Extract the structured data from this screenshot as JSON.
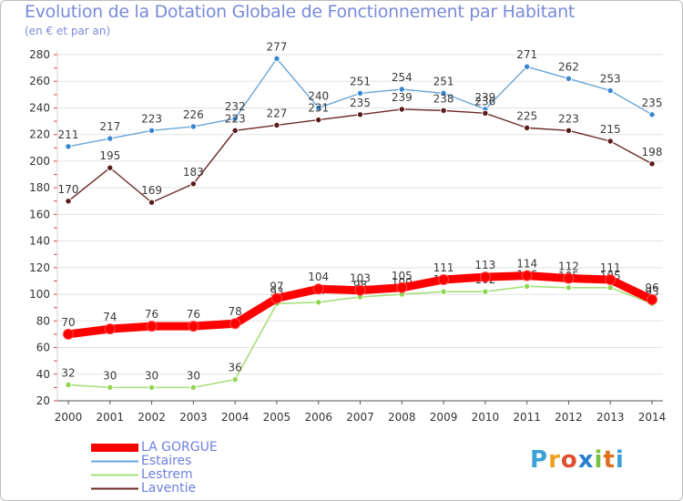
{
  "colors": {
    "la_gorgue": "#ff0000",
    "estaires": "#6aa6d8",
    "lestrem": "#a6e07a",
    "laventie": "#6b2a2a",
    "estaires_marker": "#3a86cf",
    "lestrem_marker": "#8fd650",
    "laventie_marker": "#5a1a1a",
    "text_blue": "#6d7fe0",
    "grid": "#e3e3e3"
  },
  "chart_data": {
    "type": "line",
    "title": "Evolution de la Dotation Globale de Fonctionnement par Habitant",
    "subtitle": "(en € et par an)",
    "xlabel": "",
    "ylabel": "",
    "ylim": [
      20,
      280
    ],
    "yticks": [
      20,
      40,
      60,
      80,
      100,
      120,
      140,
      160,
      180,
      200,
      220,
      240,
      260,
      280
    ],
    "grid": true,
    "legend_position": "bottom-left",
    "x": [
      2000,
      2001,
      2002,
      2003,
      2004,
      2005,
      2006,
      2007,
      2008,
      2009,
      2010,
      2011,
      2012,
      2013,
      2014
    ],
    "series": [
      {
        "key": "estaires",
        "name": "Estaires",
        "values": [
          211,
          217,
          223,
          226,
          232,
          277,
          240,
          251,
          254,
          251,
          239,
          271,
          262,
          253,
          235
        ],
        "labels": [
          "211",
          "217",
          "223",
          "226",
          "232",
          "277",
          "240",
          "251",
          "254",
          "251",
          "239",
          "271",
          "262",
          "253",
          "235"
        ]
      },
      {
        "key": "laventie",
        "name": "Laventie",
        "values": [
          170,
          195,
          169,
          183,
          223,
          227,
          231,
          235,
          239,
          238,
          236,
          225,
          223,
          215,
          198
        ],
        "labels": [
          "170",
          "195",
          "169",
          "183",
          "223",
          "227",
          "231",
          "235",
          "239",
          "238",
          "236",
          "225",
          "223",
          "215",
          "198"
        ]
      },
      {
        "key": "lestrem",
        "name": "Lestrem",
        "values": [
          32,
          30,
          30,
          30,
          36,
          93,
          94,
          98,
          100,
          102,
          102,
          106,
          105,
          105,
          93
        ],
        "labels": [
          "32",
          "30",
          "30",
          "30",
          "36",
          "93",
          "94",
          "98",
          "100",
          "102",
          "102",
          "106",
          "105",
          "105",
          "93"
        ]
      },
      {
        "key": "la_gorgue",
        "name": "LA GORGUE",
        "values": [
          70,
          74,
          76,
          76,
          78,
          97,
          104,
          103,
          105,
          111,
          113,
          114,
          112,
          111,
          96
        ],
        "labels": [
          "70",
          "74",
          "76",
          "76",
          "78",
          "97",
          "104",
          "103",
          "105",
          "111",
          "113",
          "114",
          "112",
          "111",
          "96"
        ]
      }
    ]
  },
  "legend": [
    {
      "label": "LA GORGUE",
      "color_key": "la_gorgue",
      "thickness": 9
    },
    {
      "label": "Estaires",
      "color_key": "estaires",
      "thickness": 2
    },
    {
      "label": "Lestrem",
      "color_key": "lestrem",
      "thickness": 2
    },
    {
      "label": "Laventie",
      "color_key": "laventie",
      "thickness": 2
    }
  ],
  "logo": {
    "letters": [
      "P",
      "r",
      "o",
      "x",
      "i",
      "t",
      "i"
    ],
    "colors": [
      "#3aa0d8",
      "#f0a020",
      "#e05030",
      "#2a7fd0",
      "#7cc040",
      "#e07020",
      "#3aa0d8"
    ]
  }
}
